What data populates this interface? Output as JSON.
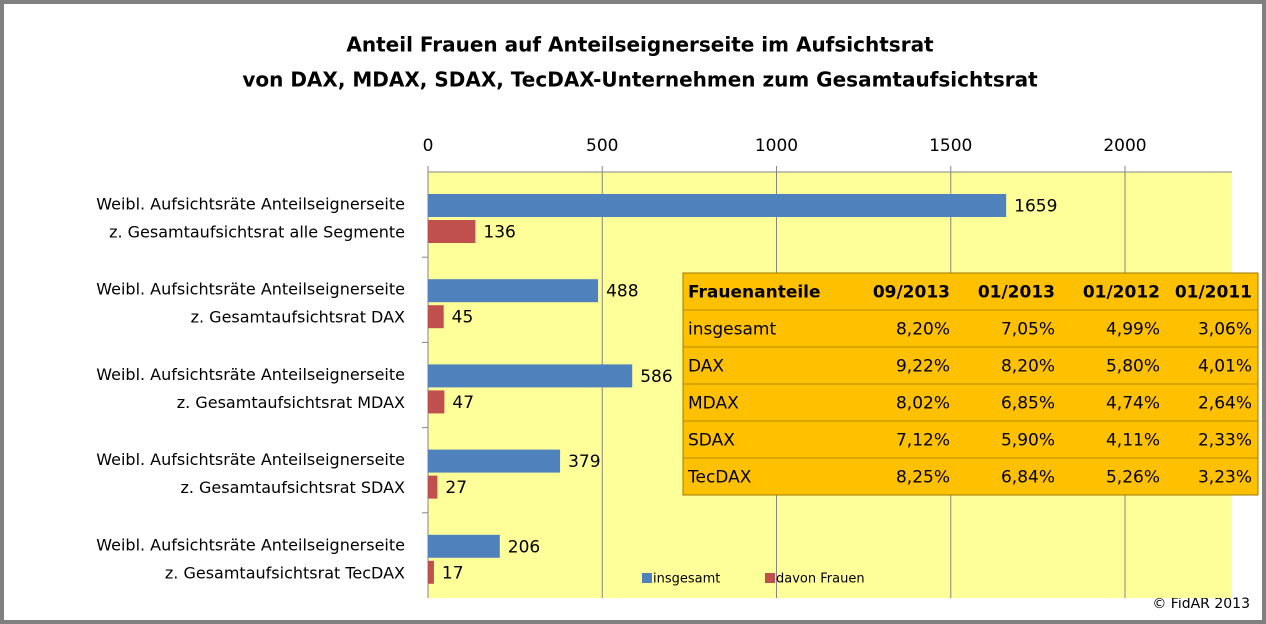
{
  "chart_data": {
    "type": "bar",
    "orientation": "horizontal",
    "title": [
      "Anteil Frauen auf Anteilseignerseite im Aufsichtsrat",
      "von DAX, MDAX, SDAX, TecDAX-Unternehmen zum Gesamtaufsichtsrat"
    ],
    "categories": [
      [
        "Weibl. Aufsichtsräte Anteilseignerseite",
        "z. Gesamtaufsichtsrat  alle Segmente"
      ],
      [
        "Weibl. Aufsichtsräte Anteilseignerseite",
        "z. Gesamtaufsichtsrat  DAX"
      ],
      [
        "Weibl. Aufsichtsräte Anteilseignerseite",
        "z. Gesamtaufsichtsrat  MDAX"
      ],
      [
        "Weibl. Aufsichtsräte Anteilseignerseite",
        "z. Gesamtaufsichtsrat  SDAX"
      ],
      [
        "Weibl. Aufsichtsräte Anteilseignerseite",
        "z. Gesamtaufsichtsrat  TecDAX"
      ]
    ],
    "series": [
      {
        "name": "insgesamt",
        "color": "#4f81bd",
        "values": [
          1659,
          488,
          586,
          379,
          206
        ]
      },
      {
        "name": "davon Frauen",
        "color": "#c0504d",
        "values": [
          136,
          45,
          47,
          27,
          17
        ]
      }
    ],
    "xlim": [
      0,
      2000
    ],
    "xticks": [
      0,
      500,
      1000,
      1500,
      2000
    ],
    "grid": true,
    "legend": "bottom",
    "table": {
      "header": [
        "Frauenanteile",
        "09/2013",
        "01/2013",
        "01/2012",
        "01/2011"
      ],
      "rows": [
        [
          "insgesamt",
          "8,20%",
          "7,05%",
          "4,99%",
          "3,06%"
        ],
        [
          "DAX",
          "9,22%",
          "8,20%",
          "5,80%",
          "4,01%"
        ],
        [
          "MDAX",
          "8,02%",
          "6,85%",
          "4,74%",
          "2,64%"
        ],
        [
          "SDAX",
          "7,12%",
          "5,90%",
          "4,11%",
          "2,33%"
        ],
        [
          "TecDAX",
          "8,25%",
          "6,84%",
          "5,26%",
          "3,23%"
        ]
      ]
    },
    "source": "© FidAR 2013"
  }
}
